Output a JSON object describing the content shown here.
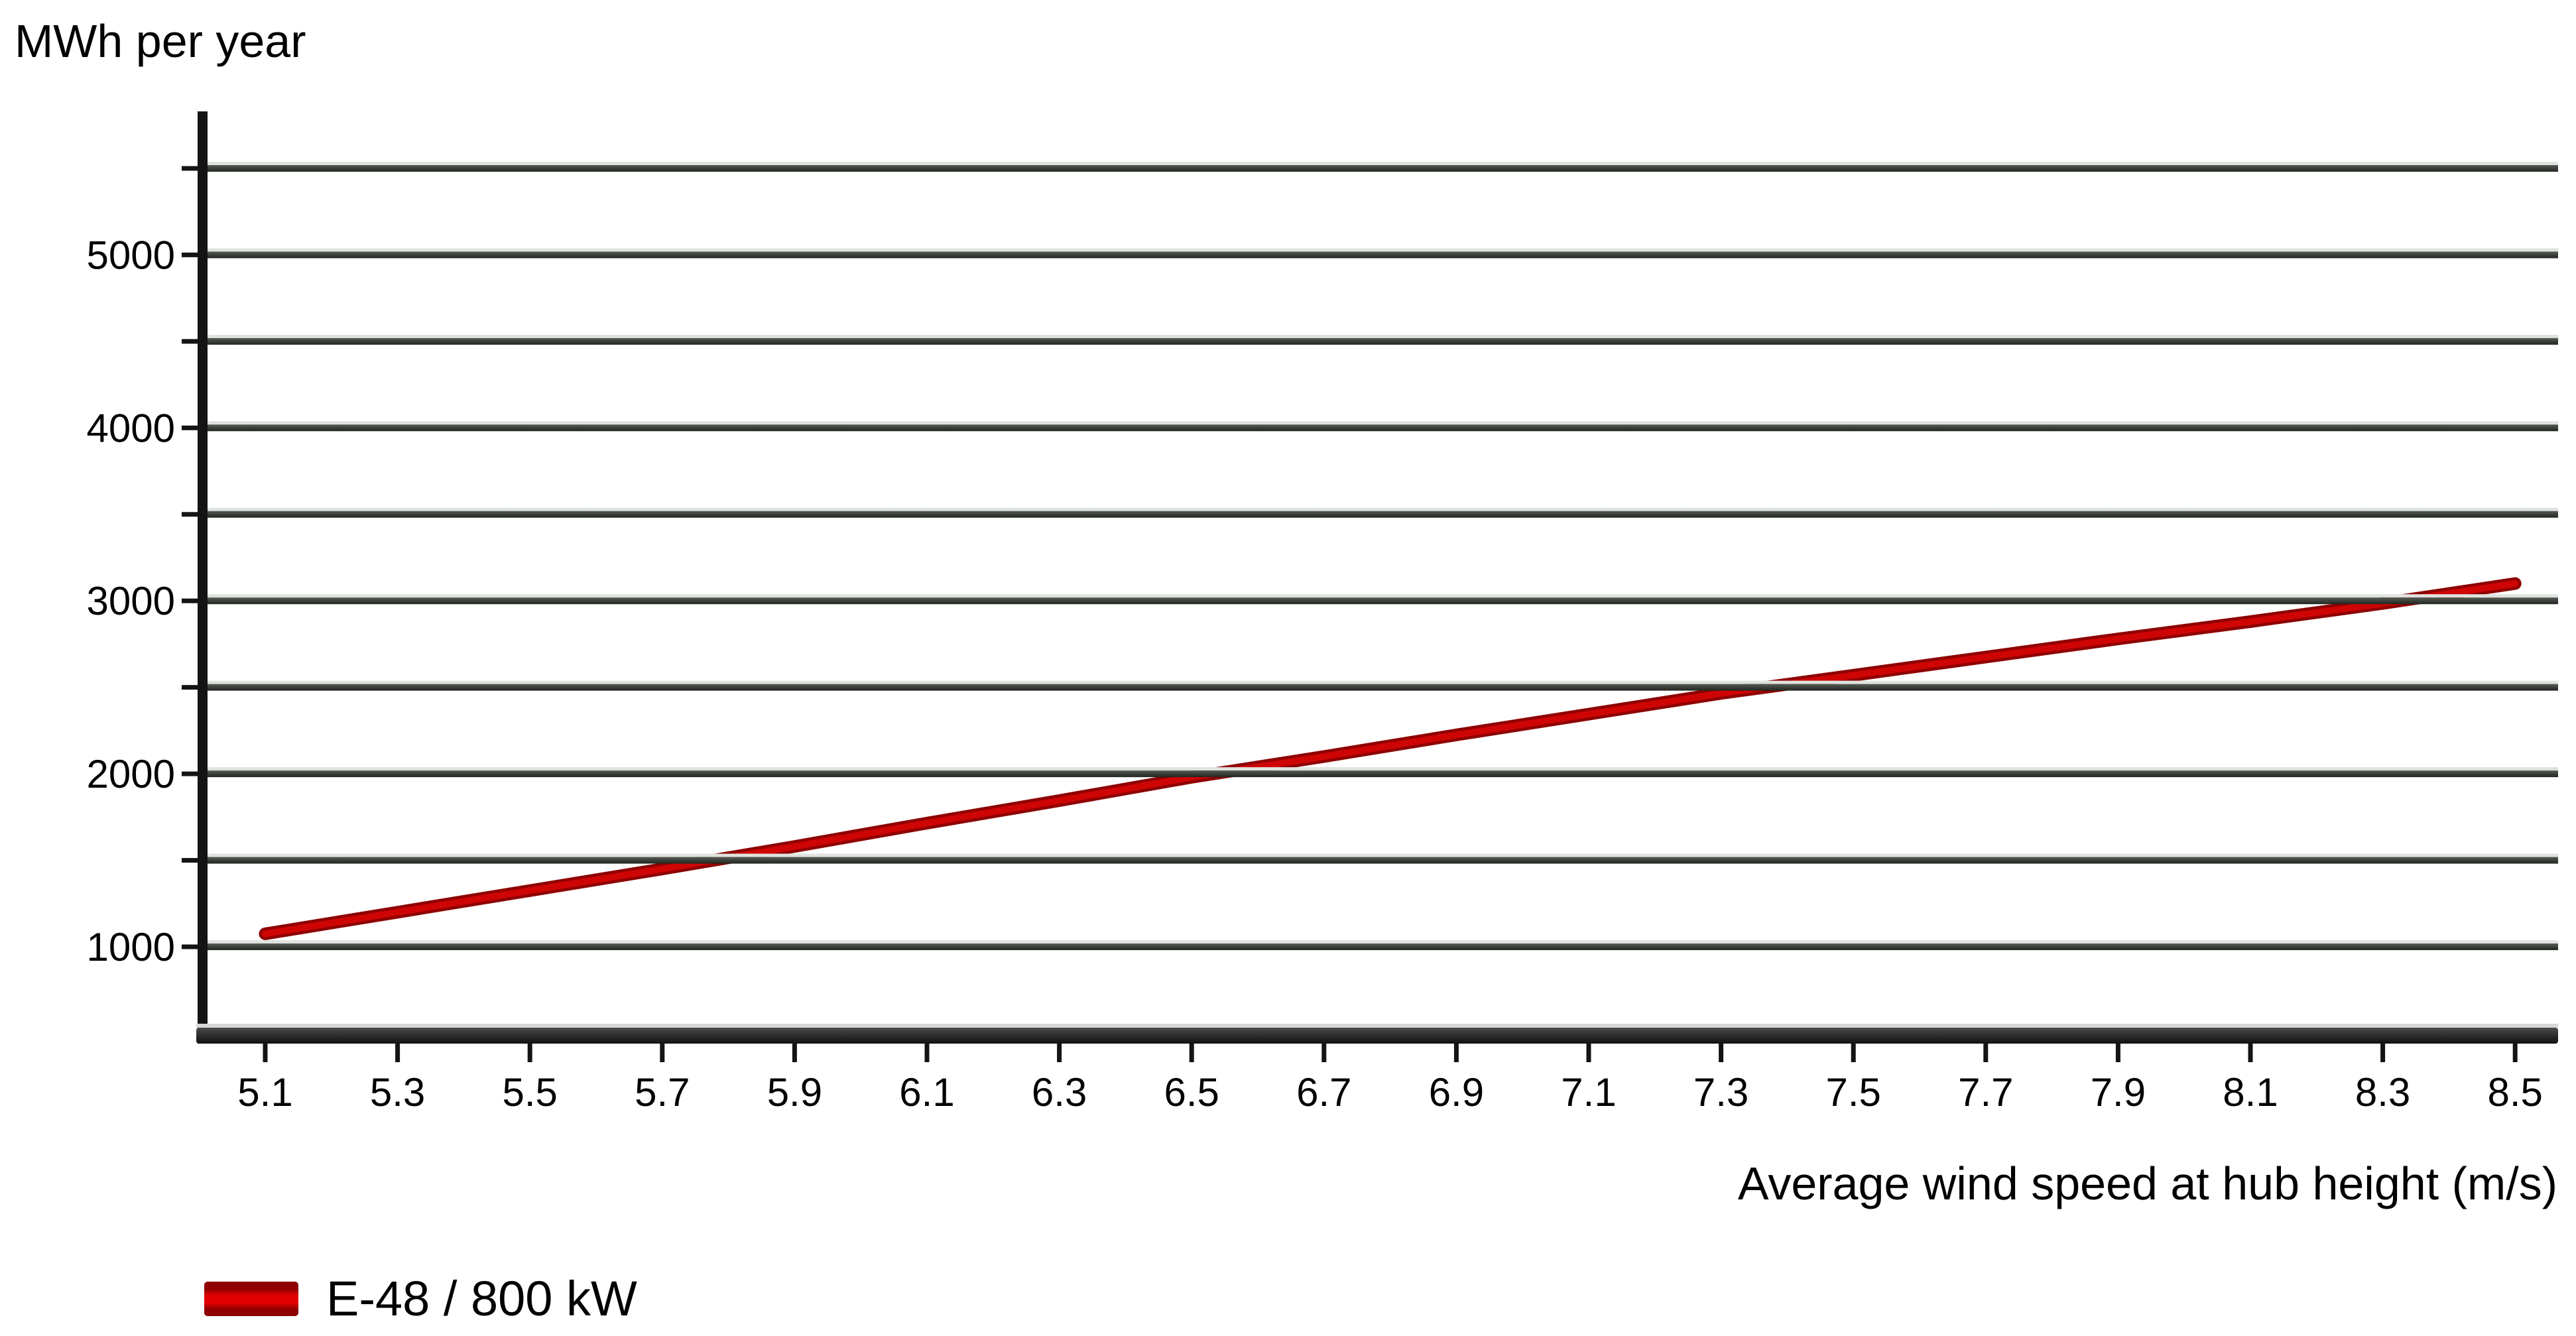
{
  "chart_data": {
    "type": "line",
    "y_axis_title": "MWh per year",
    "x_axis_title": "Average wind speed at hub height (m/s)",
    "x_ticks": [
      5.1,
      5.3,
      5.5,
      5.7,
      5.9,
      6.1,
      6.3,
      6.5,
      6.7,
      6.9,
      7.1,
      7.3,
      7.5,
      7.7,
      7.9,
      8.1,
      8.3,
      8.5
    ],
    "y_tick_values": [
      1000,
      2000,
      3000,
      4000,
      5000
    ],
    "gridline_values": [
      1000,
      1500,
      2000,
      2500,
      3000,
      3500,
      4000,
      4500,
      5000,
      5500
    ],
    "x_range": [
      5.1,
      8.5
    ],
    "y_axis_range": [
      500,
      5880
    ],
    "grid": "horizontal gridlines only, no vertical",
    "legend_position": "bottom-left",
    "series": [
      {
        "name": "E-48 / 800 kW",
        "x": [
          5.1,
          5.3,
          5.5,
          5.7,
          5.9,
          6.1,
          6.3,
          6.5,
          6.7,
          6.9,
          7.1,
          7.3,
          7.5,
          7.7,
          7.9,
          8.1,
          8.3,
          8.5
        ],
        "values": [
          1075,
          1200,
          1325,
          1450,
          1580,
          1715,
          1845,
          1980,
          2100,
          2225,
          2345,
          2465,
          2570,
          2675,
          2780,
          2880,
          2985,
          3100
        ]
      }
    ],
    "colors": {
      "line": "#cf0404",
      "line_edge": "#8e0000",
      "gridline_dark": "#20261f",
      "gridline_mid": "#565c55",
      "gridline_light": "#dfe3df",
      "axis": "#141414",
      "text": "#000000"
    }
  }
}
